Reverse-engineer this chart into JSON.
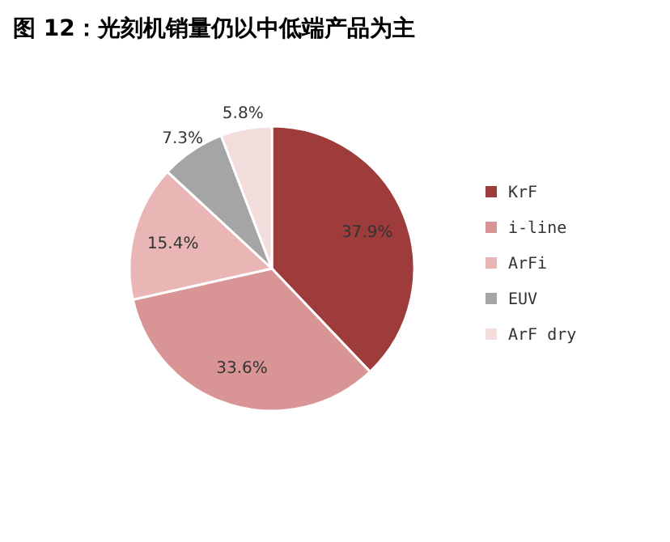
{
  "chart_data": {
    "type": "pie",
    "title": "图 12：光刻机销量仍以中低端产品为主",
    "categories": [
      "KrF",
      "i-line",
      "ArFi",
      "EUV",
      "ArF dry"
    ],
    "values": [
      37.9,
      33.6,
      15.4,
      7.3,
      5.8
    ],
    "value_labels": [
      "37.9%",
      "33.6%",
      "15.4%",
      "7.3%",
      "5.8%"
    ],
    "colors": [
      "#9e3b3b",
      "#d99595",
      "#e9b5b5",
      "#a5a5a5",
      "#f3dcdc"
    ],
    "legend": "right"
  }
}
